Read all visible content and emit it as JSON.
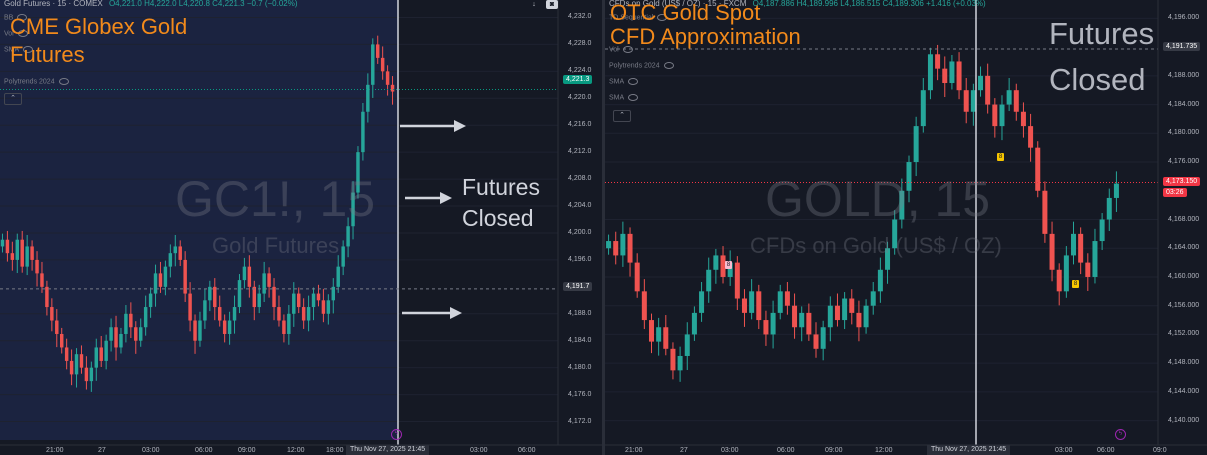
{
  "left": {
    "symbol": "Gold Futures · 15 · COMEX",
    "ohlc": "O4,221.0 H4,222.0 L4,220.8 C4,221.3 −0.7 (−0.02%)",
    "indicators": [
      "BB",
      "Vol",
      "SMA"
    ],
    "polytrends": "Polytrends 2024",
    "watermark_main": "GC1!, 15",
    "watermark_sub": "Gold Futures",
    "orange_title_1": "CME Globex Gold",
    "orange_title_2": "Futures",
    "note_1": "Futures",
    "note_2": "Closed",
    "price_axis": [
      "4,232.0",
      "4,228.0",
      "4,224.0",
      "4,220.0",
      "4,216.0",
      "4,212.0",
      "4,208.0",
      "4,204.0",
      "4,200.0",
      "4,196.0",
      "4,188.0",
      "4,184.0",
      "4,180.0",
      "4,176.0",
      "4,172.0"
    ],
    "current_price": "4,221.3",
    "crosshair_price": "4,191.7",
    "time_axis": [
      "21:00",
      "27",
      "03:00",
      "06:00",
      "09:00",
      "12:00",
      "18:00",
      "03:00",
      "06:00"
    ],
    "crosshair_time": "Thu Nov 27, 2025   21:45"
  },
  "right": {
    "symbol": "CFDs on Gold (US$ / OZ) · 15 · FXCM",
    "ohlc": "O4,187.886 H4,189.996 L4,186.515 C4,189.306 +1.416 (+0.03%)",
    "indicators": [
      "TD Sequential",
      "Vol",
      "SMA",
      "SMA"
    ],
    "polytrends": "Polytrends 2024",
    "watermark_main": "GOLD, 15",
    "watermark_sub": "CFDs on Gold (US$ / OZ)",
    "orange_title_1": "OTC Gold Spot",
    "orange_title_2": "CFD Approximation",
    "note_1": "Futures",
    "note_2": "Closed",
    "price_axis": [
      "4,196.000",
      "4,188.000",
      "4,184.000",
      "4,180.000",
      "4,176.000",
      "4,168.000",
      "4,164.000",
      "4,160.000",
      "4,156.000",
      "4,152.000",
      "4,148.000",
      "4,144.000",
      "4,140.000"
    ],
    "current_price": "4,173.150",
    "countdown": "03:26",
    "crosshair_price": "4,191.735",
    "time_axis": [
      "21:00",
      "27",
      "03:00",
      "06:00",
      "09:00",
      "12:00",
      "03:00",
      "06:00",
      "09:0"
    ],
    "crosshair_time": "Thu Nov 27, 2025   21:45",
    "td_markers": [
      "8",
      "8",
      "8"
    ]
  },
  "colors": {
    "up": "#26a69a",
    "down": "#ef5350",
    "orange": "#f28a1b",
    "bg": "#151924",
    "session": "#1b2340"
  },
  "chart_data": [
    {
      "type": "candlestick",
      "title": "GC1!, 15",
      "xlabel": "",
      "ylabel": "",
      "ylim": [
        4170,
        4234
      ],
      "closes": [
        4199,
        4197,
        4196,
        4199,
        4195,
        4198,
        4196,
        4194,
        4192,
        4189,
        4187,
        4185,
        4183,
        4181,
        4179,
        4182,
        4180,
        4178,
        4180,
        4183,
        4181,
        4184,
        4186,
        4183,
        4185,
        4188,
        4186,
        4184,
        4186,
        4189,
        4191,
        4194,
        4192,
        4195,
        4197,
        4198,
        4196,
        4191,
        4187,
        4184,
        4187,
        4190,
        4192,
        4189,
        4187,
        4185,
        4187,
        4189,
        4193,
        4195,
        4192,
        4189,
        4191,
        4194,
        4192,
        4189,
        4187,
        4185,
        4188,
        4191,
        4189,
        4187,
        4189,
        4191,
        4190,
        4188,
        4190,
        4192,
        4195,
        4198,
        4201,
        4206,
        4212,
        4218,
        4222,
        4228,
        4226,
        4224,
        4222,
        4221
      ]
    },
    {
      "type": "candlestick",
      "title": "GOLD, 15",
      "xlabel": "",
      "ylabel": "",
      "ylim": [
        4138,
        4198
      ],
      "closes": [
        4165,
        4163,
        4166,
        4162,
        4158,
        4154,
        4151,
        4153,
        4150,
        4147,
        4149,
        4152,
        4155,
        4158,
        4161,
        4163,
        4160,
        4162,
        4157,
        4155,
        4158,
        4154,
        4152,
        4155,
        4158,
        4156,
        4153,
        4155,
        4152,
        4150,
        4153,
        4156,
        4154,
        4157,
        4155,
        4153,
        4156,
        4158,
        4161,
        4164,
        4168,
        4172,
        4176,
        4181,
        4186,
        4191,
        4189,
        4187,
        4190,
        4186,
        4183,
        4186,
        4188,
        4184,
        4181,
        4184,
        4186,
        4183,
        4181,
        4178,
        4172,
        4166,
        4161,
        4158,
        4163,
        4166,
        4162,
        4160,
        4165,
        4168,
        4171,
        4173
      ]
    }
  ]
}
